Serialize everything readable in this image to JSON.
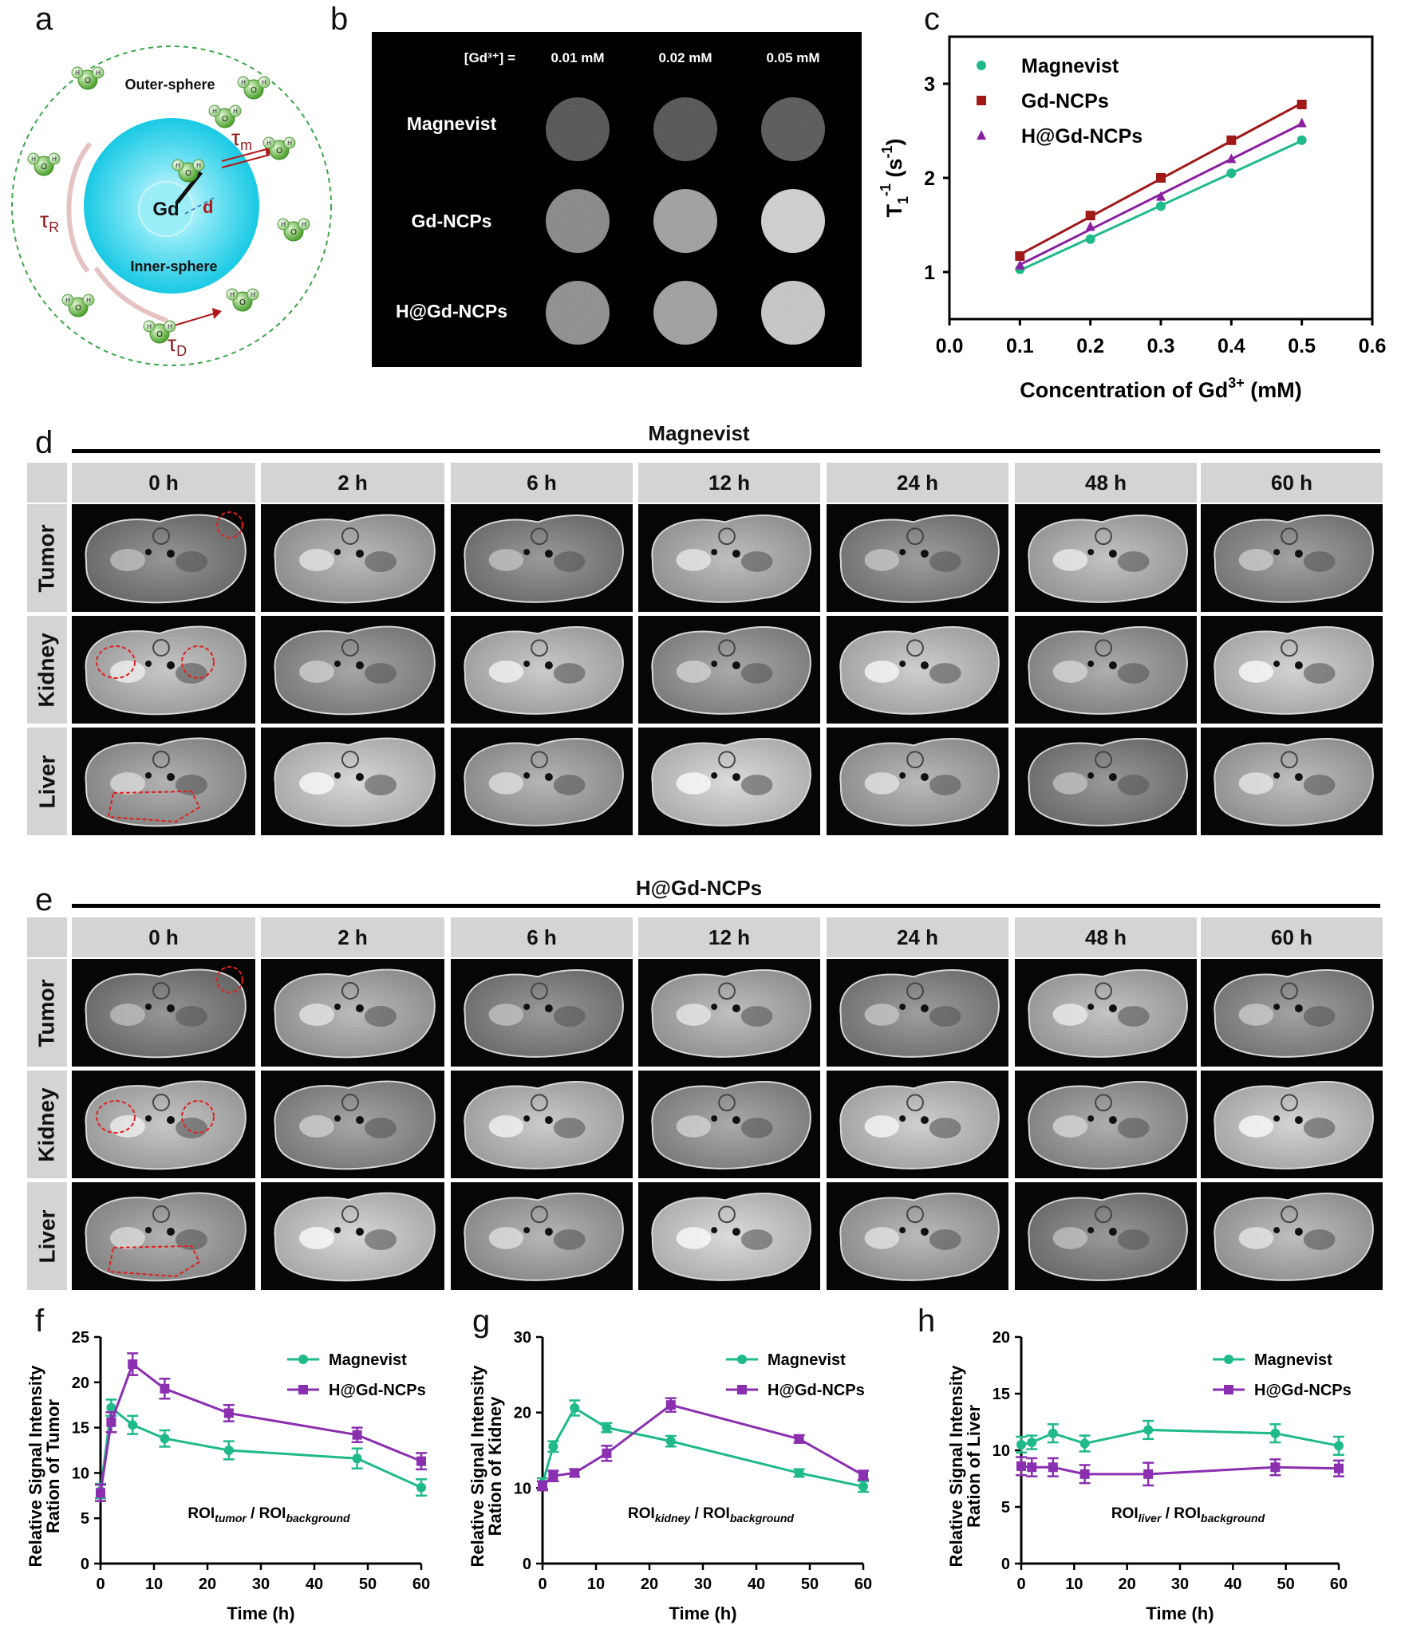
{
  "panel_a": {
    "letter": "a",
    "outer_label": "Outer-sphere",
    "inner_label": "Inner-sphere",
    "gd": "Gd",
    "d": "d",
    "tau_m": "τ",
    "tau_m_sub": "m",
    "tau_r": "τ",
    "tau_r_sub": "R",
    "tau_d": "τ",
    "tau_d_sub": "D",
    "atom_o": "O",
    "atom_h": "H"
  },
  "panel_b": {
    "letter": "b",
    "conc_label": "[Gd³⁺]   =",
    "columns": [
      "0.01 mM",
      "0.02 mM",
      "0.05 mM"
    ],
    "rows": [
      "Magnevist",
      "Gd-NCPs",
      "H@Gd-NCPs"
    ],
    "intensity": [
      [
        0.3,
        0.3,
        0.32
      ],
      [
        0.52,
        0.62,
        0.82
      ],
      [
        0.55,
        0.62,
        0.78
      ]
    ]
  },
  "panel_c": {
    "letter": "c",
    "chart_data": {
      "type": "scatter",
      "xlabel": "Concentration of Gd",
      "xlabel_sup": "3+",
      "xlabel_unit": " (mM)",
      "ylabel": "T",
      "ylabel_sub": "1",
      "ylabel_sup": "-1",
      "ylabel_unit": " (s",
      "ylabel_unit_sup": "-1",
      "ylabel_close": ")",
      "xlim": [
        0.0,
        0.6
      ],
      "ylim": [
        0.5,
        3.5
      ],
      "xticks": [
        "0.0",
        "0.1",
        "0.2",
        "0.3",
        "0.4",
        "0.5",
        "0.6"
      ],
      "yticks": [
        "1",
        "2",
        "3"
      ],
      "legend_position": "top-left",
      "series": [
        {
          "name": "Magnevist",
          "color": "#1fb98a",
          "marker": "circle",
          "x": [
            0.1,
            0.2,
            0.3,
            0.4,
            0.5
          ],
          "y": [
            1.03,
            1.35,
            1.7,
            2.05,
            2.4
          ]
        },
        {
          "name": "Gd-NCPs",
          "color": "#a01818",
          "marker": "square",
          "x": [
            0.1,
            0.2,
            0.3,
            0.4,
            0.5
          ],
          "y": [
            1.17,
            1.6,
            2.0,
            2.4,
            2.78
          ]
        },
        {
          "name": "H@Gd-NCPs",
          "color": "#8a1fa0",
          "marker": "triangle",
          "x": [
            0.1,
            0.2,
            0.3,
            0.4,
            0.5
          ],
          "y": [
            1.07,
            1.48,
            1.8,
            2.2,
            2.58
          ]
        }
      ]
    }
  },
  "panel_d": {
    "letter": "d",
    "title": "Magnevist",
    "times": [
      "0 h",
      "2 h",
      "6 h",
      "12 h",
      "24 h",
      "48 h",
      "60 h"
    ],
    "rows": [
      "Tumor",
      "Kidney",
      "Liver"
    ]
  },
  "panel_e": {
    "letter": "e",
    "title": "H@Gd-NCPs",
    "times": [
      "0 h",
      "2 h",
      "6 h",
      "12 h",
      "24 h",
      "48 h",
      "60 h"
    ],
    "rows": [
      "Tumor",
      "Kidney",
      "Liver"
    ]
  },
  "panel_f": {
    "letter": "f",
    "chart_data": {
      "type": "line",
      "xlabel": "Time (h)",
      "ylabel_line1": "Relative Signal Intensity",
      "ylabel_line2": "Ration of Tumor",
      "annotation_main": "ROI",
      "annotation_sub1": "tumor",
      "annotation_mid": " / ROI",
      "annotation_sub2": "background",
      "xlim": [
        0,
        60
      ],
      "ylim": [
        0,
        25
      ],
      "xticks": [
        "0",
        "10",
        "20",
        "30",
        "40",
        "50",
        "60"
      ],
      "yticks": [
        "0",
        "5",
        "10",
        "15",
        "20",
        "25"
      ],
      "legend_position": "top-right",
      "series": [
        {
          "name": "Magnevist",
          "color": "#1fb98a",
          "marker": "circle",
          "x": [
            0,
            2,
            6,
            12,
            24,
            48,
            60
          ],
          "y": [
            8.0,
            17.2,
            15.3,
            13.8,
            12.5,
            11.6,
            8.4
          ],
          "err": [
            0.8,
            0.9,
            1.0,
            0.9,
            1.0,
            1.1,
            0.9
          ]
        },
        {
          "name": "H@Gd-NCPs",
          "color": "#8a2fb0",
          "marker": "square",
          "x": [
            0,
            2,
            6,
            12,
            24,
            48,
            60
          ],
          "y": [
            7.8,
            15.6,
            22.0,
            19.3,
            16.6,
            14.2,
            11.3
          ],
          "err": [
            0.9,
            1.1,
            1.2,
            1.1,
            0.9,
            0.8,
            0.9
          ]
        }
      ]
    }
  },
  "panel_g": {
    "letter": "g",
    "chart_data": {
      "type": "line",
      "xlabel": "Time (h)",
      "ylabel_line1": "Relative Signal Intensity",
      "ylabel_line2": "Ration of Kidney",
      "annotation_main": "ROI",
      "annotation_sub1": "kidney",
      "annotation_mid": " / ROI",
      "annotation_sub2": "background",
      "xlim": [
        0,
        60
      ],
      "ylim": [
        0,
        30
      ],
      "xticks": [
        "0",
        "10",
        "20",
        "30",
        "40",
        "50",
        "60"
      ],
      "yticks": [
        "0",
        "10",
        "20",
        "30"
      ],
      "legend_position": "top-right",
      "series": [
        {
          "name": "Magnevist",
          "color": "#1fb98a",
          "marker": "circle",
          "x": [
            0,
            2,
            6,
            12,
            24,
            48,
            60
          ],
          "y": [
            10.6,
            15.5,
            20.6,
            18.0,
            16.2,
            12.0,
            10.2
          ],
          "err": [
            0.7,
            0.7,
            1.0,
            0.6,
            0.7,
            0.5,
            0.7
          ]
        },
        {
          "name": "H@Gd-NCPs",
          "color": "#8a2fb0",
          "marker": "square",
          "x": [
            0,
            2,
            6,
            12,
            24,
            48,
            60
          ],
          "y": [
            10.3,
            11.6,
            12.0,
            14.6,
            21.0,
            16.5,
            11.7
          ],
          "err": [
            0.6,
            0.7,
            0.5,
            1.0,
            0.9,
            0.5,
            0.6
          ]
        }
      ]
    }
  },
  "panel_h": {
    "letter": "h",
    "chart_data": {
      "type": "line",
      "xlabel": "Time (h)",
      "ylabel_line1": "Relative Signal Intensity",
      "ylabel_line2": "Ration of Liver",
      "annotation_main": "ROI",
      "annotation_sub1": "liver",
      "annotation_mid": " / ROI",
      "annotation_sub2": "background",
      "xlim": [
        0,
        60
      ],
      "ylim": [
        0,
        20
      ],
      "xticks": [
        "0",
        "10",
        "20",
        "30",
        "40",
        "50",
        "60"
      ],
      "yticks": [
        "0",
        "5",
        "10",
        "15",
        "20"
      ],
      "legend_position": "top-right",
      "series": [
        {
          "name": "Magnevist",
          "color": "#1fb98a",
          "marker": "circle",
          "x": [
            0,
            2,
            6,
            12,
            24,
            48,
            60
          ],
          "y": [
            10.5,
            10.7,
            11.5,
            10.6,
            11.8,
            11.5,
            10.4
          ],
          "err": [
            0.7,
            0.6,
            0.8,
            0.7,
            0.8,
            0.8,
            0.8
          ]
        },
        {
          "name": "H@Gd-NCPs",
          "color": "#8a2fb0",
          "marker": "square",
          "x": [
            0,
            2,
            6,
            12,
            24,
            48,
            60
          ],
          "y": [
            8.6,
            8.5,
            8.5,
            7.9,
            7.9,
            8.5,
            8.4
          ],
          "err": [
            0.8,
            0.8,
            0.8,
            0.8,
            1.0,
            0.7,
            0.7
          ]
        }
      ]
    }
  }
}
